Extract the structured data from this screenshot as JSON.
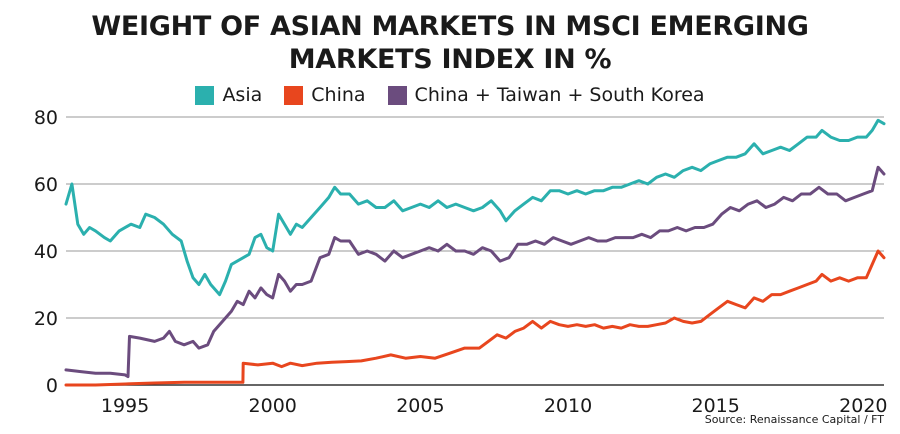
{
  "chart_data": {
    "type": "line",
    "title": "WEIGHT OF ASIAN MARKETS IN MSCI EMERGING MARKETS INDEX IN %",
    "title_lines": [
      "WEIGHT OF ASIAN MARKETS IN MSCI EMERGING",
      "MARKETS INDEX IN %"
    ],
    "xlabel": "",
    "ylabel": "",
    "xlim": [
      1993,
      2020.7
    ],
    "ylim": [
      0,
      80
    ],
    "x_ticks": [
      1995,
      2000,
      2005,
      2010,
      2015,
      2020
    ],
    "y_ticks": [
      0,
      20,
      40,
      60,
      80
    ],
    "grid": "horizontal",
    "legend_position": "top",
    "source": "Source: Renaissance Capital / FT",
    "series": [
      {
        "name": "Asia",
        "color": "#2bb0ae",
        "points": [
          [
            1993.0,
            54
          ],
          [
            1993.2,
            60
          ],
          [
            1993.4,
            48
          ],
          [
            1993.6,
            45
          ],
          [
            1993.8,
            47
          ],
          [
            1994.0,
            46
          ],
          [
            1994.3,
            44
          ],
          [
            1994.5,
            43
          ],
          [
            1994.8,
            46
          ],
          [
            1995.2,
            48
          ],
          [
            1995.5,
            47
          ],
          [
            1995.7,
            51
          ],
          [
            1996.0,
            50
          ],
          [
            1996.3,
            48
          ],
          [
            1996.6,
            45
          ],
          [
            1996.9,
            43
          ],
          [
            1997.1,
            37
          ],
          [
            1997.3,
            32
          ],
          [
            1997.5,
            30
          ],
          [
            1997.7,
            33
          ],
          [
            1997.9,
            30
          ],
          [
            1998.2,
            27
          ],
          [
            1998.4,
            31
          ],
          [
            1998.6,
            36
          ],
          [
            1998.8,
            37
          ],
          [
            1999.0,
            38
          ],
          [
            1999.2,
            39
          ],
          [
            1999.4,
            44
          ],
          [
            1999.6,
            45
          ],
          [
            1999.8,
            41
          ],
          [
            2000.0,
            40
          ],
          [
            2000.2,
            51
          ],
          [
            2000.4,
            48
          ],
          [
            2000.6,
            45
          ],
          [
            2000.8,
            48
          ],
          [
            2001.0,
            47
          ],
          [
            2001.3,
            50
          ],
          [
            2001.6,
            53
          ],
          [
            2001.9,
            56
          ],
          [
            2002.1,
            59
          ],
          [
            2002.3,
            57
          ],
          [
            2002.6,
            57
          ],
          [
            2002.9,
            54
          ],
          [
            2003.2,
            55
          ],
          [
            2003.5,
            53
          ],
          [
            2003.8,
            53
          ],
          [
            2004.1,
            55
          ],
          [
            2004.4,
            52
          ],
          [
            2004.7,
            53
          ],
          [
            2005.0,
            54
          ],
          [
            2005.3,
            53
          ],
          [
            2005.6,
            55
          ],
          [
            2005.9,
            53
          ],
          [
            2006.2,
            54
          ],
          [
            2006.5,
            53
          ],
          [
            2006.8,
            52
          ],
          [
            2007.1,
            53
          ],
          [
            2007.4,
            55
          ],
          [
            2007.7,
            52
          ],
          [
            2007.9,
            49
          ],
          [
            2008.2,
            52
          ],
          [
            2008.5,
            54
          ],
          [
            2008.8,
            56
          ],
          [
            2009.1,
            55
          ],
          [
            2009.4,
            58
          ],
          [
            2009.7,
            58
          ],
          [
            2010.0,
            57
          ],
          [
            2010.3,
            58
          ],
          [
            2010.6,
            57
          ],
          [
            2010.9,
            58
          ],
          [
            2011.2,
            58
          ],
          [
            2011.5,
            59
          ],
          [
            2011.8,
            59
          ],
          [
            2012.1,
            60
          ],
          [
            2012.4,
            61
          ],
          [
            2012.7,
            60
          ],
          [
            2013.0,
            62
          ],
          [
            2013.3,
            63
          ],
          [
            2013.6,
            62
          ],
          [
            2013.9,
            64
          ],
          [
            2014.2,
            65
          ],
          [
            2014.5,
            64
          ],
          [
            2014.8,
            66
          ],
          [
            2015.1,
            67
          ],
          [
            2015.4,
            68
          ],
          [
            2015.7,
            68
          ],
          [
            2016.0,
            69
          ],
          [
            2016.3,
            72
          ],
          [
            2016.6,
            69
          ],
          [
            2016.9,
            70
          ],
          [
            2017.2,
            71
          ],
          [
            2017.5,
            70
          ],
          [
            2017.8,
            72
          ],
          [
            2018.1,
            74
          ],
          [
            2018.4,
            74
          ],
          [
            2018.6,
            76
          ],
          [
            2018.9,
            74
          ],
          [
            2019.2,
            73
          ],
          [
            2019.5,
            73
          ],
          [
            2019.8,
            74
          ],
          [
            2020.1,
            74
          ],
          [
            2020.3,
            76
          ],
          [
            2020.5,
            79
          ],
          [
            2020.7,
            78
          ]
        ]
      },
      {
        "name": "China",
        "color": "#e8461e",
        "points": [
          [
            1993.0,
            0
          ],
          [
            1994.0,
            0
          ],
          [
            1995.0,
            0.3
          ],
          [
            1996.0,
            0.6
          ],
          [
            1997.0,
            0.8
          ],
          [
            1998.0,
            0.8
          ],
          [
            1998.99,
            0.8
          ],
          [
            1999.0,
            6.5
          ],
          [
            1999.5,
            6
          ],
          [
            2000.0,
            6.5
          ],
          [
            2000.3,
            5.5
          ],
          [
            2000.6,
            6.5
          ],
          [
            2001.0,
            5.8
          ],
          [
            2001.5,
            6.5
          ],
          [
            2002.0,
            6.8
          ],
          [
            2002.5,
            7
          ],
          [
            2003.0,
            7.2
          ],
          [
            2003.5,
            8
          ],
          [
            2004.0,
            9
          ],
          [
            2004.5,
            8
          ],
          [
            2005.0,
            8.5
          ],
          [
            2005.5,
            8
          ],
          [
            2006.0,
            9.5
          ],
          [
            2006.5,
            11
          ],
          [
            2007.0,
            11
          ],
          [
            2007.3,
            13
          ],
          [
            2007.6,
            15
          ],
          [
            2007.9,
            14
          ],
          [
            2008.2,
            16
          ],
          [
            2008.5,
            17
          ],
          [
            2008.8,
            19
          ],
          [
            2009.1,
            17
          ],
          [
            2009.4,
            19
          ],
          [
            2009.7,
            18
          ],
          [
            2010.0,
            17.5
          ],
          [
            2010.3,
            18
          ],
          [
            2010.6,
            17.5
          ],
          [
            2010.9,
            18
          ],
          [
            2011.2,
            17
          ],
          [
            2011.5,
            17.5
          ],
          [
            2011.8,
            17
          ],
          [
            2012.1,
            18
          ],
          [
            2012.4,
            17.5
          ],
          [
            2012.7,
            17.5
          ],
          [
            2013.0,
            18
          ],
          [
            2013.3,
            18.5
          ],
          [
            2013.6,
            20
          ],
          [
            2013.9,
            19
          ],
          [
            2014.2,
            18.5
          ],
          [
            2014.5,
            19
          ],
          [
            2014.8,
            21
          ],
          [
            2015.1,
            23
          ],
          [
            2015.4,
            25
          ],
          [
            2015.7,
            24
          ],
          [
            2016.0,
            23
          ],
          [
            2016.3,
            26
          ],
          [
            2016.6,
            25
          ],
          [
            2016.9,
            27
          ],
          [
            2017.2,
            27
          ],
          [
            2017.5,
            28
          ],
          [
            2017.8,
            29
          ],
          [
            2018.1,
            30
          ],
          [
            2018.4,
            31
          ],
          [
            2018.6,
            33
          ],
          [
            2018.9,
            31
          ],
          [
            2019.2,
            32
          ],
          [
            2019.5,
            31
          ],
          [
            2019.8,
            32
          ],
          [
            2020.1,
            32
          ],
          [
            2020.3,
            36
          ],
          [
            2020.5,
            40
          ],
          [
            2020.7,
            38
          ]
        ]
      },
      {
        "name": "China + Taiwan + South Korea",
        "color": "#6b4c7e",
        "points": [
          [
            1993.0,
            4.5
          ],
          [
            1993.5,
            4
          ],
          [
            1994.0,
            3.5
          ],
          [
            1994.5,
            3.5
          ],
          [
            1995.0,
            3
          ],
          [
            1995.1,
            2.5
          ],
          [
            1995.15,
            14.5
          ],
          [
            1995.5,
            14
          ],
          [
            1996.0,
            13
          ],
          [
            1996.3,
            14
          ],
          [
            1996.5,
            16
          ],
          [
            1996.7,
            13
          ],
          [
            1997.0,
            12
          ],
          [
            1997.3,
            13
          ],
          [
            1997.5,
            11
          ],
          [
            1997.8,
            12
          ],
          [
            1998.0,
            16
          ],
          [
            1998.3,
            19
          ],
          [
            1998.6,
            22
          ],
          [
            1998.8,
            25
          ],
          [
            1999.0,
            24
          ],
          [
            1999.2,
            28
          ],
          [
            1999.4,
            26
          ],
          [
            1999.6,
            29
          ],
          [
            1999.8,
            27
          ],
          [
            2000.0,
            26
          ],
          [
            2000.2,
            33
          ],
          [
            2000.4,
            31
          ],
          [
            2000.6,
            28
          ],
          [
            2000.8,
            30
          ],
          [
            2001.0,
            30
          ],
          [
            2001.3,
            31
          ],
          [
            2001.6,
            38
          ],
          [
            2001.9,
            39
          ],
          [
            2002.1,
            44
          ],
          [
            2002.3,
            43
          ],
          [
            2002.6,
            43
          ],
          [
            2002.9,
            39
          ],
          [
            2003.2,
            40
          ],
          [
            2003.5,
            39
          ],
          [
            2003.8,
            37
          ],
          [
            2004.1,
            40
          ],
          [
            2004.4,
            38
          ],
          [
            2004.7,
            39
          ],
          [
            2005.0,
            40
          ],
          [
            2005.3,
            41
          ],
          [
            2005.6,
            40
          ],
          [
            2005.9,
            42
          ],
          [
            2006.2,
            40
          ],
          [
            2006.5,
            40
          ],
          [
            2006.8,
            39
          ],
          [
            2007.1,
            41
          ],
          [
            2007.4,
            40
          ],
          [
            2007.7,
            37
          ],
          [
            2008.0,
            38
          ],
          [
            2008.3,
            42
          ],
          [
            2008.6,
            42
          ],
          [
            2008.9,
            43
          ],
          [
            2009.2,
            42
          ],
          [
            2009.5,
            44
          ],
          [
            2009.8,
            43
          ],
          [
            2010.1,
            42
          ],
          [
            2010.4,
            43
          ],
          [
            2010.7,
            44
          ],
          [
            2011.0,
            43
          ],
          [
            2011.3,
            43
          ],
          [
            2011.6,
            44
          ],
          [
            2011.9,
            44
          ],
          [
            2012.2,
            44
          ],
          [
            2012.5,
            45
          ],
          [
            2012.8,
            44
          ],
          [
            2013.1,
            46
          ],
          [
            2013.4,
            46
          ],
          [
            2013.7,
            47
          ],
          [
            2014.0,
            46
          ],
          [
            2014.3,
            47
          ],
          [
            2014.6,
            47
          ],
          [
            2014.9,
            48
          ],
          [
            2015.2,
            51
          ],
          [
            2015.5,
            53
          ],
          [
            2015.8,
            52
          ],
          [
            2016.1,
            54
          ],
          [
            2016.4,
            55
          ],
          [
            2016.7,
            53
          ],
          [
            2017.0,
            54
          ],
          [
            2017.3,
            56
          ],
          [
            2017.6,
            55
          ],
          [
            2017.9,
            57
          ],
          [
            2018.2,
            57
          ],
          [
            2018.5,
            59
          ],
          [
            2018.8,
            57
          ],
          [
            2019.1,
            57
          ],
          [
            2019.4,
            55
          ],
          [
            2019.7,
            56
          ],
          [
            2020.0,
            57
          ],
          [
            2020.3,
            58
          ],
          [
            2020.5,
            65
          ],
          [
            2020.7,
            63
          ]
        ]
      }
    ]
  }
}
